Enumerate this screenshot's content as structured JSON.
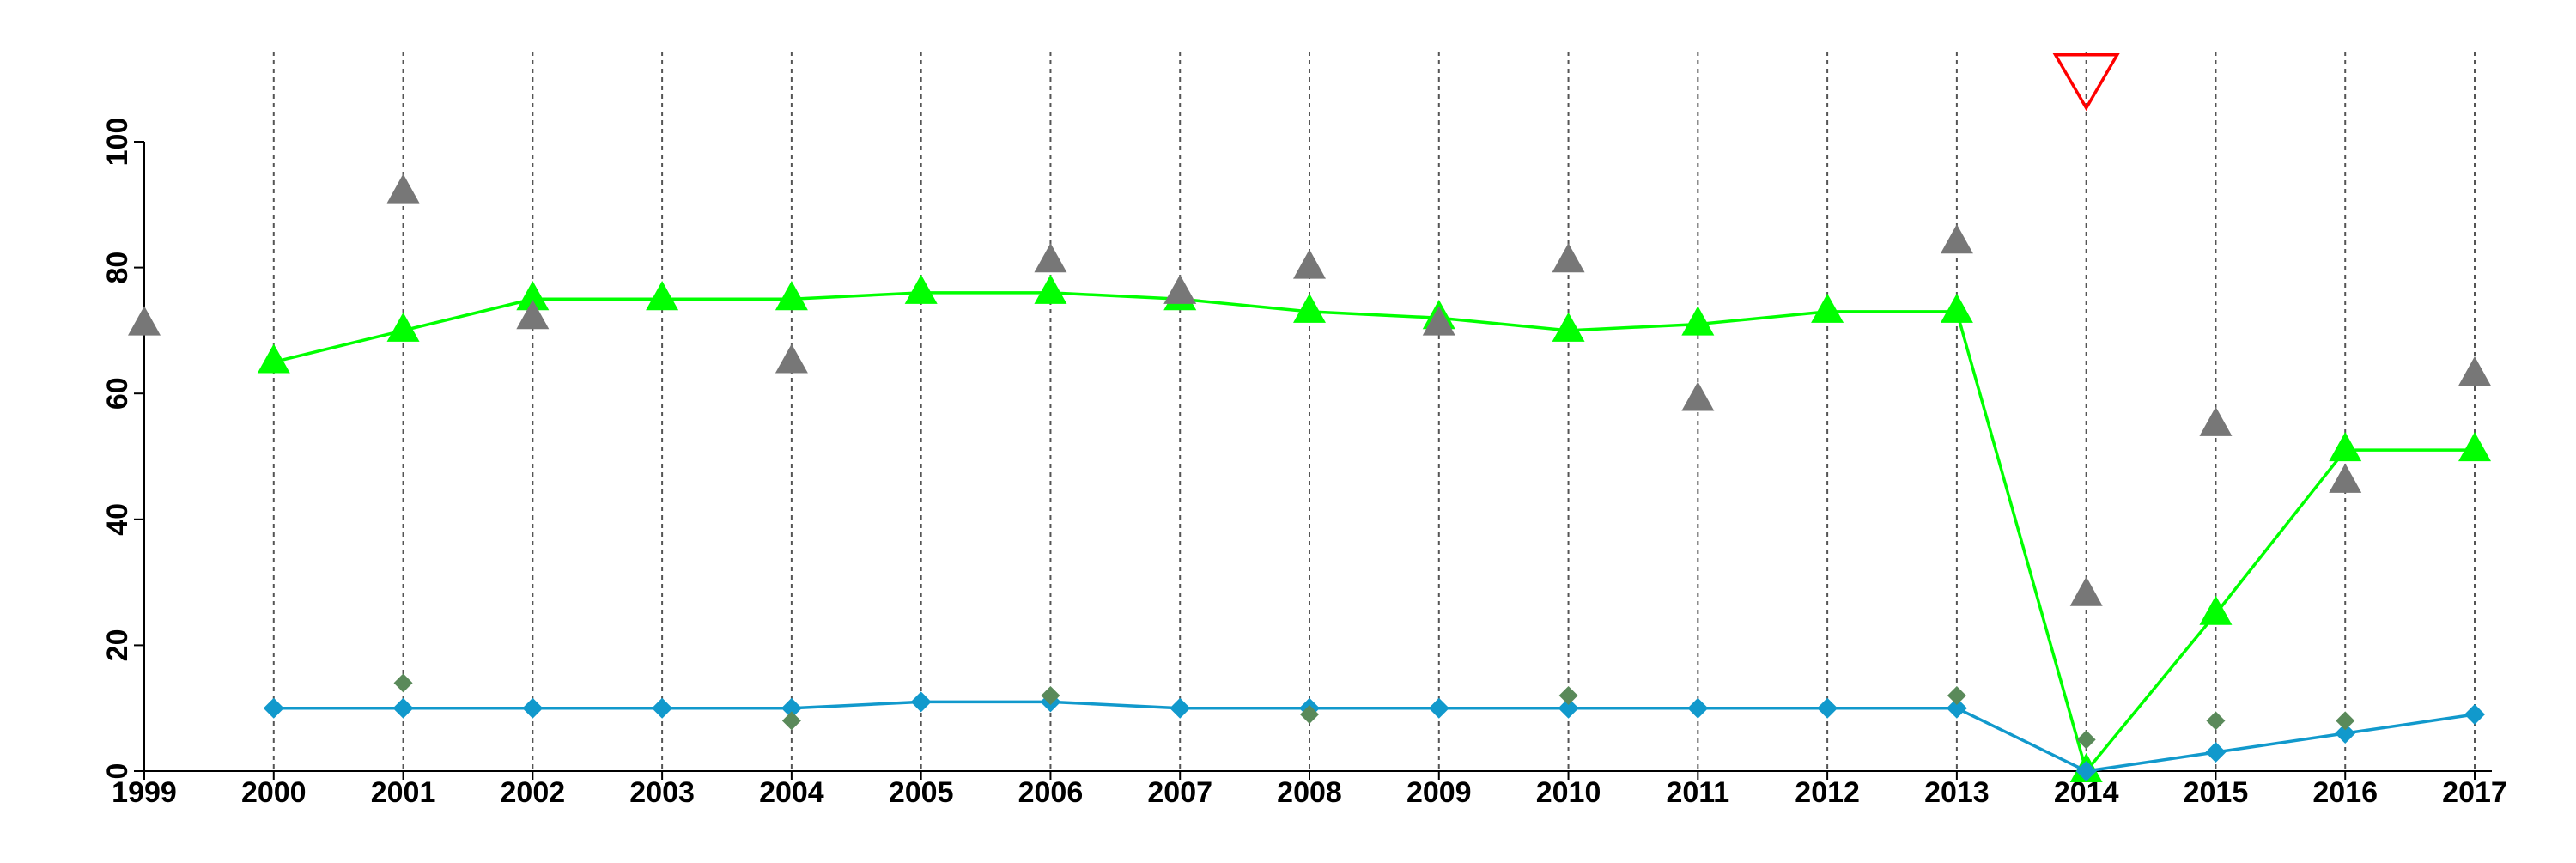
{
  "chart_data": {
    "type": "line",
    "title": "",
    "xlabel": "",
    "ylabel": "",
    "x": [
      1999,
      2000,
      2001,
      2002,
      2003,
      2004,
      2005,
      2006,
      2007,
      2008,
      2009,
      2010,
      2011,
      2012,
      2013,
      2014,
      2015,
      2016,
      2017
    ],
    "x_tick_labels": [
      "1999",
      "2000",
      "2001",
      "2002",
      "2003",
      "2004",
      "2005",
      "2006",
      "2007",
      "2008",
      "2009",
      "2010",
      "2011",
      "2012",
      "2013",
      "2014",
      "2015",
      "2016",
      "2017"
    ],
    "xlim": [
      1999,
      2017
    ],
    "ylim": [
      0,
      100
    ],
    "y_ticks": [
      0,
      20,
      40,
      60,
      80,
      100
    ],
    "y_tick_labels": [
      "0",
      "20",
      "40",
      "60",
      "80",
      "100"
    ],
    "grid": {
      "vertical": true,
      "horizontal": false
    },
    "vertical_grid_years": [
      2000,
      2001,
      2002,
      2003,
      2004,
      2005,
      2006,
      2007,
      2008,
      2009,
      2010,
      2011,
      2012,
      2013,
      2014,
      2015,
      2016,
      2017
    ],
    "legend": "none",
    "series": [
      {
        "kind": "line",
        "marker": "triangle-up",
        "color": "#00ff00",
        "points": [
          [
            2000,
            65
          ],
          [
            2001,
            70
          ],
          [
            2002,
            75
          ],
          [
            2003,
            75
          ],
          [
            2004,
            75
          ],
          [
            2005,
            76
          ],
          [
            2006,
            76
          ],
          [
            2007,
            75
          ],
          [
            2008,
            73
          ],
          [
            2009,
            72
          ],
          [
            2010,
            70
          ],
          [
            2011,
            71
          ],
          [
            2012,
            73
          ],
          [
            2013,
            73
          ],
          [
            2014,
            0
          ],
          [
            2015,
            25
          ],
          [
            2016,
            51
          ],
          [
            2017,
            51
          ]
        ]
      },
      {
        "kind": "line",
        "marker": "diamond",
        "color": "#1199cc",
        "points": [
          [
            2000,
            10
          ],
          [
            2001,
            10
          ],
          [
            2002,
            10
          ],
          [
            2003,
            10
          ],
          [
            2004,
            10
          ],
          [
            2005,
            11
          ],
          [
            2006,
            11
          ],
          [
            2007,
            10
          ],
          [
            2008,
            10
          ],
          [
            2009,
            10
          ],
          [
            2010,
            10
          ],
          [
            2011,
            10
          ],
          [
            2012,
            10
          ],
          [
            2013,
            10
          ],
          [
            2014,
            0
          ],
          [
            2015,
            3
          ],
          [
            2016,
            6
          ],
          [
            2017,
            9
          ]
        ]
      },
      {
        "kind": "scatter",
        "marker": "triangle-up",
        "color": "#777777",
        "points": [
          [
            1999,
            71
          ],
          [
            2001,
            92
          ],
          [
            2002,
            72
          ],
          [
            2004,
            65
          ],
          [
            2006,
            81
          ],
          [
            2007,
            76
          ],
          [
            2008,
            80
          ],
          [
            2009,
            71
          ],
          [
            2010,
            81
          ],
          [
            2011,
            59
          ],
          [
            2013,
            84
          ],
          [
            2014,
            28
          ],
          [
            2015,
            55
          ],
          [
            2016,
            46
          ],
          [
            2017,
            63
          ]
        ]
      },
      {
        "kind": "scatter",
        "marker": "diamond",
        "color": "#5a8a5a",
        "points": [
          [
            2001,
            14
          ],
          [
            2004,
            8
          ],
          [
            2006,
            12
          ],
          [
            2008,
            9
          ],
          [
            2010,
            12
          ],
          [
            2013,
            12
          ],
          [
            2014,
            5
          ],
          [
            2015,
            8
          ],
          [
            2016,
            8
          ]
        ]
      }
    ],
    "annotations": [
      {
        "type": "marker",
        "marker": "triangle-down-outline",
        "color": "#ff0000",
        "x": 2014,
        "y": 110
      }
    ]
  }
}
